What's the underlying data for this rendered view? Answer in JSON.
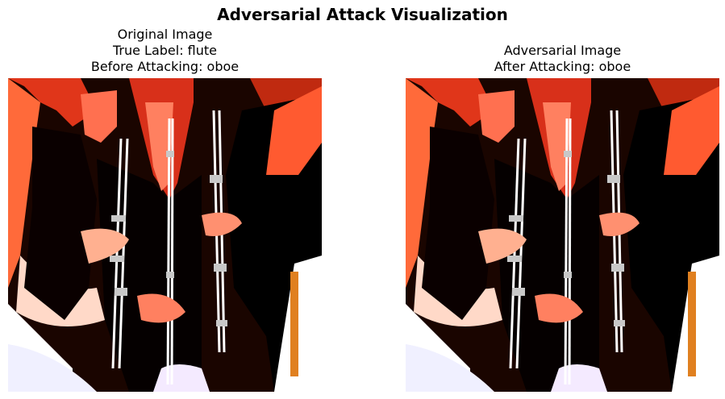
{
  "figure": {
    "suptitle": "Adversarial Attack Visualization"
  },
  "panels": [
    {
      "title_lines": [
        "Original Image",
        "True Label: flute",
        "Before Attacking: oboe"
      ],
      "image_description_icon": "photo-icon"
    },
    {
      "title_lines": [
        "Adversarial Image",
        "After Attacking: oboe"
      ],
      "image_description_icon": "photo-icon"
    }
  ],
  "colors": {
    "background": "#ffffff",
    "image_dark": "#000000",
    "skin_red": "#e0361a",
    "skin_light": "#ffd9c8"
  }
}
